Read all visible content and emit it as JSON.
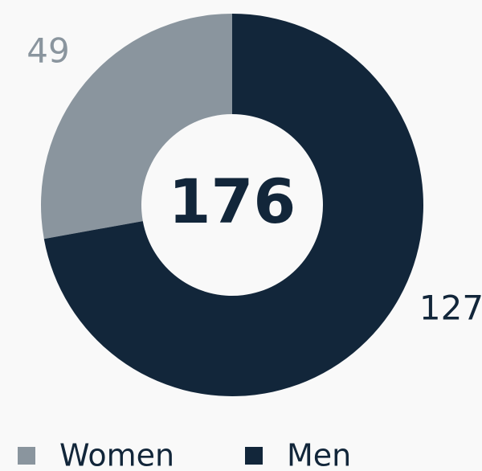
{
  "chart_data": {
    "type": "donut",
    "categories": [
      "Men",
      "Women"
    ],
    "values": [
      127,
      49
    ],
    "colors": [
      "#12263a",
      "#8a959e"
    ],
    "total": 176,
    "legend": "bottom"
  }
}
